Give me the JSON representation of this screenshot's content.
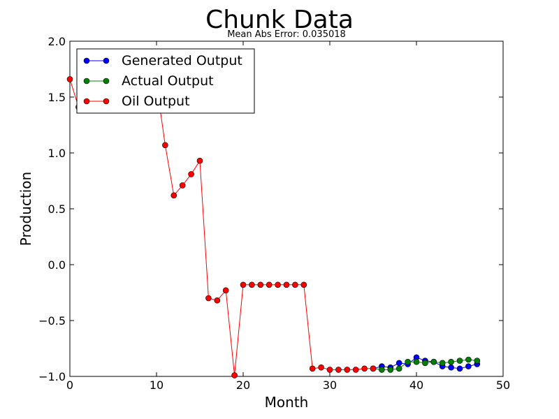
{
  "chart_data": {
    "type": "line",
    "title": "Chunk Data",
    "subtitle": "Mean Abs Error: 0.035018",
    "xlabel": "Month",
    "ylabel": "Production",
    "xlim": [
      0,
      50
    ],
    "ylim": [
      -1.0,
      2.0
    ],
    "x_ticks": [
      0,
      10,
      20,
      30,
      40,
      50
    ],
    "y_ticks": [
      -1.0,
      -0.5,
      0.0,
      0.5,
      1.0,
      1.5,
      2.0
    ],
    "x_tick_labels": [
      "0",
      "10",
      "20",
      "30",
      "40",
      "50"
    ],
    "y_tick_labels": [
      "−1.0",
      "−0.5",
      "0.0",
      "0.5",
      "1.0",
      "1.5",
      "2.0"
    ],
    "grid": false,
    "legend_position": "top-left",
    "series": [
      {
        "name": "Generated Output",
        "color": "#0000ff",
        "marker": "circle",
        "x": [
          35,
          36,
          37,
          38,
          39,
          40,
          41,
          42,
          43,
          44,
          45,
          46,
          47
        ],
        "y": [
          -0.93,
          -0.91,
          -0.92,
          -0.88,
          -0.89,
          -0.83,
          -0.86,
          -0.87,
          -0.91,
          -0.92,
          -0.93,
          -0.91,
          -0.89
        ]
      },
      {
        "name": "Actual Output",
        "color": "#008000",
        "marker": "circle",
        "x": [
          35,
          36,
          37,
          38,
          39,
          40,
          41,
          42,
          43,
          44,
          45,
          46,
          47
        ],
        "y": [
          -0.93,
          -0.94,
          -0.94,
          -0.93,
          -0.87,
          -0.87,
          -0.88,
          -0.87,
          -0.88,
          -0.87,
          -0.86,
          -0.85,
          -0.86
        ]
      },
      {
        "name": "Oil Output",
        "color": "#ff0000",
        "marker": "circle",
        "x": [
          0,
          1,
          2,
          3,
          4,
          5,
          6,
          7,
          8,
          9,
          10,
          11,
          12,
          13,
          14,
          15,
          16,
          17,
          18,
          19,
          20,
          21,
          22,
          23,
          24,
          25,
          26,
          27,
          28,
          29,
          30,
          31,
          32,
          33,
          34,
          35
        ],
        "y": [
          1.66,
          1.41,
          1.55,
          1.62,
          1.69,
          1.74,
          1.79,
          1.82,
          1.84,
          1.85,
          1.62,
          1.07,
          0.62,
          0.71,
          0.81,
          0.93,
          -0.3,
          -0.32,
          -0.23,
          -0.99,
          -0.18,
          -0.18,
          -0.18,
          -0.18,
          -0.18,
          -0.18,
          -0.18,
          -0.18,
          -0.93,
          -0.92,
          -0.94,
          -0.94,
          -0.94,
          -0.94,
          -0.93,
          -0.93
        ]
      }
    ]
  }
}
